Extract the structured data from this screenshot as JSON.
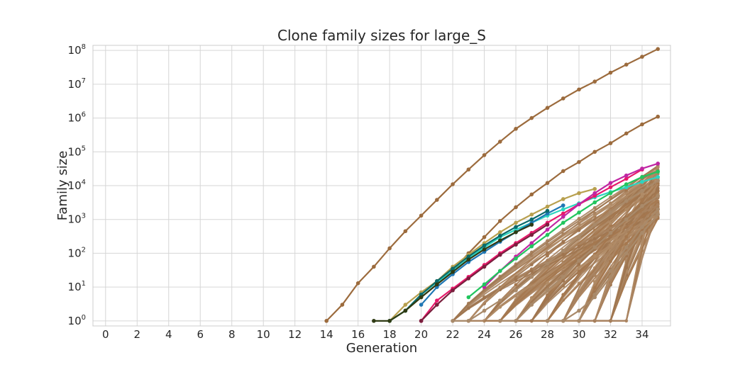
{
  "chart_data": {
    "type": "line",
    "title": "Clone family sizes for large_S",
    "xlabel": "Generation",
    "ylabel": "Family size",
    "xlim": [
      -0.8,
      35.8
    ],
    "ylim_log10": [
      -0.15,
      8.15
    ],
    "yscale": "log",
    "grid": true,
    "x_ticks": [
      0,
      2,
      4,
      6,
      8,
      10,
      12,
      14,
      16,
      18,
      20,
      22,
      24,
      26,
      28,
      30,
      32,
      34
    ],
    "y_tick_labels": [
      {
        "base": "10",
        "exp": "0"
      },
      {
        "base": "10",
        "exp": "1"
      },
      {
        "base": "10",
        "exp": "2"
      },
      {
        "base": "10",
        "exp": "3"
      },
      {
        "base": "10",
        "exp": "4"
      },
      {
        "base": "10",
        "exp": "5"
      },
      {
        "base": "10",
        "exp": "6"
      },
      {
        "base": "10",
        "exp": "7"
      },
      {
        "base": "10",
        "exp": "8"
      }
    ],
    "series": [
      {
        "color": "#9c6b3d",
        "x": [
          14,
          15,
          16,
          17,
          18,
          19,
          20,
          21,
          22,
          23,
          24,
          25,
          26,
          27,
          28,
          29,
          30,
          31,
          32,
          33,
          34,
          35
        ],
        "y": [
          1,
          3,
          13,
          40,
          140,
          450,
          1300,
          3800,
          11000,
          30000,
          80000,
          200000,
          480000,
          1000000,
          2000000,
          3800000,
          7000000,
          12000000,
          22000000,
          38000000,
          65000000,
          110000000
        ]
      },
      {
        "color": "#9c6b3d",
        "x": [
          18,
          19,
          20,
          21,
          22,
          23,
          24,
          25,
          26,
          27,
          28,
          29,
          30,
          31,
          32,
          33,
          34,
          35
        ],
        "y": [
          1,
          2,
          5,
          12,
          30,
          100,
          300,
          900,
          2300,
          5500,
          12000,
          27000,
          50000,
          100000,
          180000,
          350000,
          650000,
          1100000
        ]
      },
      {
        "color": "#b8a04f",
        "x": [
          18,
          19,
          20,
          21,
          22,
          23,
          24,
          25,
          26,
          27,
          28,
          29,
          30,
          31
        ],
        "y": [
          1,
          3,
          7,
          15,
          40,
          90,
          200,
          420,
          800,
          1400,
          2400,
          4000,
          6000,
          8000
        ]
      },
      {
        "color": "#2dd4bf",
        "x": [
          18,
          19,
          20,
          21,
          22,
          23,
          24,
          25,
          26,
          27,
          28,
          29,
          30,
          31,
          32,
          33,
          34,
          35
        ],
        "y": [
          1,
          2,
          6,
          14,
          30,
          70,
          150,
          300,
          500,
          800,
          1300,
          2000,
          3000,
          4500,
          6500,
          9000,
          13000,
          18000
        ]
      },
      {
        "color": "#1f77b4",
        "x": [
          20,
          21,
          22,
          23,
          24,
          25,
          26,
          27,
          28,
          29
        ],
        "y": [
          3,
          10,
          24,
          55,
          110,
          220,
          420,
          800,
          1500,
          2600
        ]
      },
      {
        "color": "#0b6a6a",
        "x": [
          19,
          20,
          21,
          22,
          23,
          24,
          25,
          26,
          27,
          28
        ],
        "y": [
          2,
          6,
          15,
          35,
          80,
          170,
          330,
          600,
          1000,
          1800
        ]
      },
      {
        "color": "#e6196b",
        "x": [
          20,
          21,
          22,
          23,
          24,
          25,
          26,
          27,
          28,
          29,
          30,
          31,
          32,
          33,
          34
        ],
        "y": [
          1,
          4,
          9,
          20,
          45,
          100,
          200,
          400,
          800,
          1500,
          2800,
          5000,
          9000,
          16000,
          30000
        ]
      },
      {
        "color": "#7a1f3d",
        "x": [
          20,
          21,
          22,
          23,
          24,
          25,
          26,
          27,
          28
        ],
        "y": [
          1,
          3,
          8,
          18,
          40,
          90,
          180,
          350,
          700
        ]
      },
      {
        "color": "#2f3b14",
        "x": [
          17,
          18,
          19,
          20,
          21,
          22,
          23,
          24,
          25,
          26,
          27
        ],
        "y": [
          1,
          1,
          2,
          5,
          12,
          28,
          65,
          130,
          240,
          420,
          700
        ]
      },
      {
        "color": "#c026a3",
        "x": [
          24,
          25,
          26,
          27,
          28,
          29,
          30,
          31,
          32,
          33,
          34,
          35
        ],
        "y": [
          10,
          30,
          80,
          200,
          500,
          1200,
          2800,
          6000,
          12000,
          20000,
          32000,
          45000
        ]
      },
      {
        "color": "#22c55e",
        "x": [
          23,
          24,
          25,
          26,
          27,
          28,
          29,
          30,
          31,
          32,
          33,
          34,
          35
        ],
        "y": [
          5,
          12,
          30,
          70,
          160,
          350,
          800,
          1600,
          3200,
          6000,
          11000,
          18000,
          26000
        ]
      },
      {
        "color": "#a98a6a",
        "x": [
          22,
          23,
          24,
          25,
          26,
          27,
          28,
          29,
          30,
          31,
          32,
          33,
          34,
          35
        ],
        "y": [
          1,
          1,
          2,
          4,
          8,
          20,
          50,
          120,
          300,
          700,
          1600,
          3500,
          7000,
          14000
        ]
      },
      {
        "color": "#a98a6a",
        "x": [
          28,
          29,
          30,
          31,
          32,
          33,
          34,
          35
        ],
        "y": [
          1,
          1,
          2,
          5,
          20,
          100,
          400,
          1400
        ]
      },
      {
        "color": "#a98a6a",
        "x": [
          30,
          31,
          32,
          33,
          34,
          35
        ],
        "y": [
          1,
          6,
          30,
          150,
          600,
          2000
        ]
      },
      {
        "color": "#a98a6a",
        "x": [
          25,
          26,
          27,
          28,
          29,
          30,
          31,
          32,
          33,
          34,
          35
        ],
        "y": [
          1,
          1,
          3,
          8,
          20,
          60,
          150,
          400,
          1000,
          2500,
          5000
        ]
      }
    ]
  }
}
